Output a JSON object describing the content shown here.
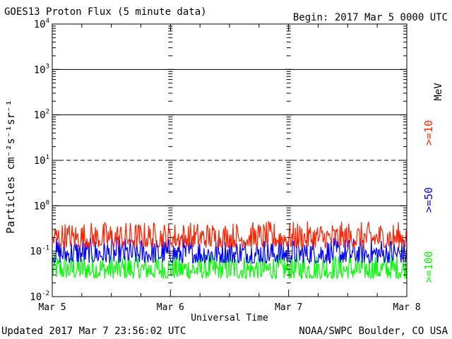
{
  "header": {
    "title": "GOES13 Proton Flux (5 minute data)",
    "begin": "Begin: 2017 Mar 5 0000 UTC"
  },
  "footer": {
    "updated": "Updated 2017 Mar  7 23:56:02 UTC",
    "source": "NOAA/SWPC Boulder, CO USA"
  },
  "chart_data": {
    "type": "line",
    "title": "GOES13 Proton Flux (5 minute data)",
    "xlabel": "Universal Time",
    "ylabel": "Particles cm⁻²s⁻¹sr⁻¹",
    "y_scale": "log",
    "ylim": [
      0.01,
      10000
    ],
    "xlim": [
      0,
      3
    ],
    "x_tick_labels": [
      "Mar 5",
      "Mar 6",
      "Mar 7",
      "Mar 8"
    ],
    "y_tick_labels": [
      {
        "base": "10",
        "exp": "-2"
      },
      {
        "base": "10",
        "exp": "-1"
      },
      {
        "base": "10",
        "exp": "0"
      },
      {
        "base": "10",
        "exp": "1"
      },
      {
        "base": "10",
        "exp": "2"
      },
      {
        "base": "10",
        "exp": "3"
      },
      {
        "base": "10",
        "exp": "4"
      }
    ],
    "threshold_lines": [
      {
        "value": 1,
        "style": "solid"
      },
      {
        "value": 10,
        "style": "dashed"
      },
      {
        "value": 100,
        "style": "solid"
      },
      {
        "value": 1000,
        "style": "solid"
      }
    ],
    "legend_unit": "MeV",
    "series": [
      {
        "name": ">=10",
        "color": "#ff2200",
        "typical_range": [
          0.12,
          0.45
        ]
      },
      {
        "name": ">=50",
        "color": "#0000ff",
        "typical_range": [
          0.055,
          0.2
        ]
      },
      {
        "name": ">=100",
        "color": "#00ff00",
        "typical_range": [
          0.025,
          0.09
        ]
      }
    ]
  }
}
